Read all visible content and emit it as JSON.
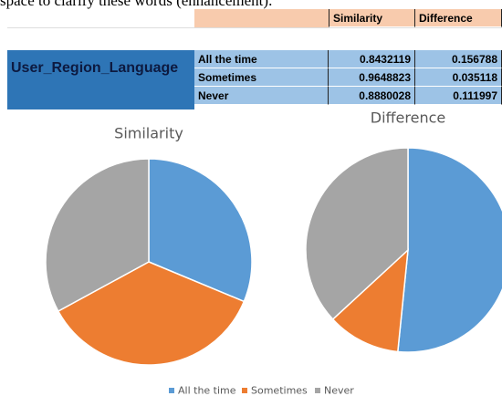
{
  "caption": "space to clarify these words (enhancement).",
  "table": {
    "header": [
      "Similarity",
      "Difference"
    ],
    "row_group": "User_Region_Language",
    "rows": [
      [
        "All the time",
        "0.8432119",
        "0.156788"
      ],
      [
        "Sometimes",
        "0.9648823",
        "0.035118"
      ],
      [
        "Never",
        "0.8880028",
        "0.111997"
      ]
    ]
  },
  "chart_data": [
    {
      "type": "pie",
      "title": "Similarity",
      "categories": [
        "All the time",
        "Sometimes",
        "Never"
      ],
      "values": [
        0.8432119,
        0.9648823,
        0.8880028
      ],
      "colors": [
        "#5b9bd5",
        "#ed7d31",
        "#a5a5a5"
      ],
      "legend": "bottom"
    },
    {
      "type": "pie",
      "title": "Difference",
      "categories": [
        "All the time",
        "Sometimes",
        "Never"
      ],
      "values": [
        0.156788,
        0.035118,
        0.111997
      ],
      "colors": [
        "#5b9bd5",
        "#ed7d31",
        "#a5a5a5"
      ],
      "legend": "bottom"
    }
  ]
}
